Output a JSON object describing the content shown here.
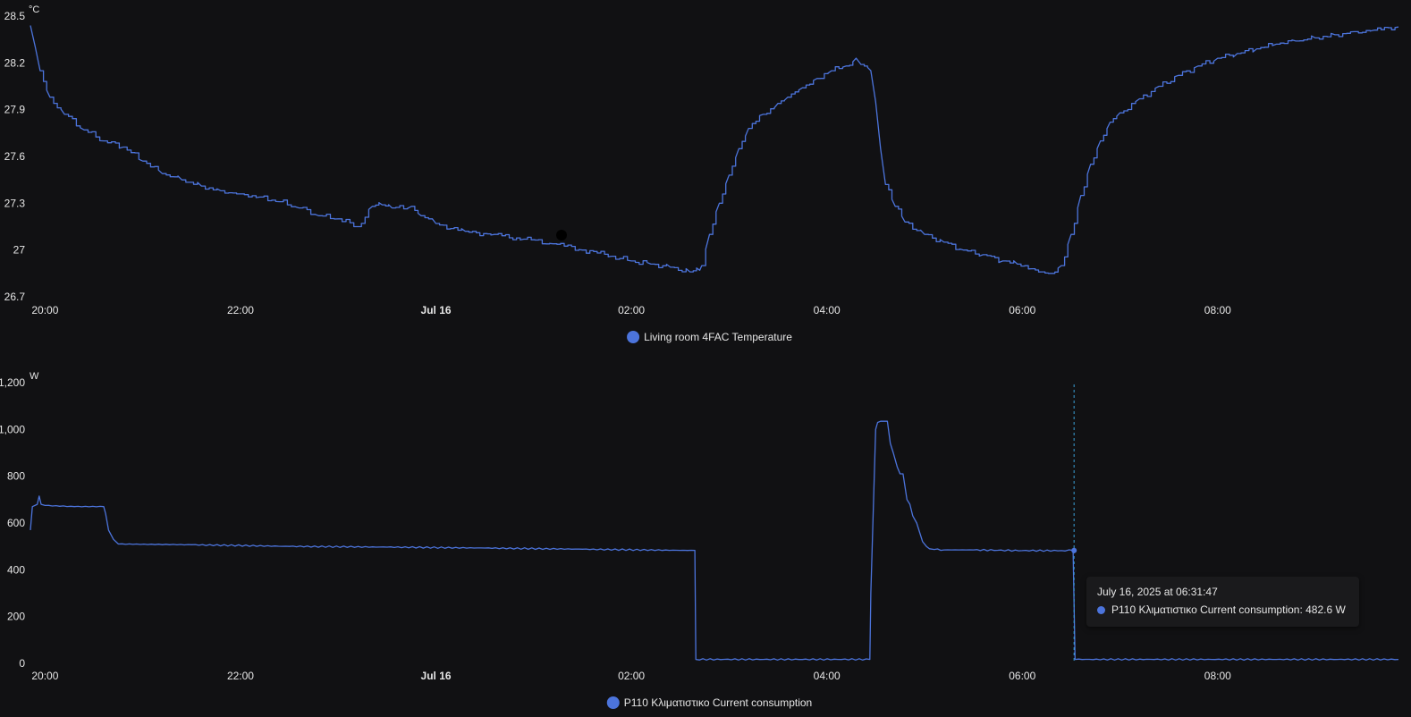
{
  "colors": {
    "background": "#111113",
    "series": "#4c74dc",
    "text": "#e6e6e6",
    "crosshair": "#3aa0d6"
  },
  "chart_data": [
    {
      "type": "line",
      "unit": "°C",
      "ylim": [
        26.7,
        28.5
      ],
      "y_ticks": [
        "28.5",
        "28.2",
        "27.9",
        "27.6",
        "27.3",
        "27",
        "26.7"
      ],
      "x_range_hours": [
        19.85,
        33.85
      ],
      "x_ticks": [
        {
          "label": "20:00",
          "hour": 20,
          "bold": false
        },
        {
          "label": "22:00",
          "hour": 22,
          "bold": false
        },
        {
          "label": "Jul 16",
          "hour": 24,
          "bold": true
        },
        {
          "label": "02:00",
          "hour": 26,
          "bold": false
        },
        {
          "label": "04:00",
          "hour": 28,
          "bold": false
        },
        {
          "label": "06:00",
          "hour": 30,
          "bold": false
        },
        {
          "label": "08:00",
          "hour": 32,
          "bold": false
        }
      ],
      "grid": false,
      "legend_position": "bottom-center",
      "series": [
        {
          "name": "Living room 4FAC Temperature",
          "x": [
            19.85,
            19.9,
            19.95,
            20.05,
            20.2,
            20.4,
            20.6,
            20.8,
            21.0,
            21.2,
            21.4,
            21.6,
            21.8,
            22.0,
            22.2,
            22.4,
            22.6,
            22.8,
            23.0,
            23.2,
            23.35,
            23.45,
            23.55,
            23.75,
            23.85,
            24.0,
            24.3,
            24.6,
            24.9,
            25.2,
            25.5,
            25.8,
            26.0,
            26.2,
            26.4,
            26.6,
            26.7,
            26.72,
            26.8,
            26.9,
            27.0,
            27.1,
            27.2,
            27.35,
            27.5,
            27.6,
            27.75,
            27.9,
            28.05,
            28.2,
            28.3,
            28.35,
            28.45,
            28.5,
            28.55,
            28.6,
            28.7,
            28.8,
            29.0,
            29.2,
            29.4,
            29.6,
            29.8,
            29.95,
            30.1,
            30.2,
            30.3,
            30.4,
            30.5,
            30.6,
            30.7,
            30.8,
            30.9,
            31.0,
            31.2,
            31.4,
            31.6,
            31.8,
            32.0,
            32.2,
            32.4,
            32.6,
            32.8,
            33.0,
            33.2,
            33.4,
            33.6,
            33.85
          ],
          "values": [
            28.44,
            28.3,
            28.15,
            27.98,
            27.87,
            27.77,
            27.7,
            27.66,
            27.57,
            27.49,
            27.45,
            27.41,
            27.38,
            27.36,
            27.34,
            27.31,
            27.27,
            27.22,
            27.2,
            27.15,
            27.28,
            27.29,
            27.27,
            27.28,
            27.22,
            27.17,
            27.12,
            27.1,
            27.07,
            27.04,
            27.0,
            26.96,
            26.93,
            26.91,
            26.89,
            26.86,
            26.87,
            26.9,
            27.1,
            27.3,
            27.48,
            27.65,
            27.78,
            27.87,
            27.94,
            27.98,
            28.04,
            28.1,
            28.15,
            28.18,
            28.23,
            28.19,
            28.15,
            27.95,
            27.65,
            27.42,
            27.28,
            27.18,
            27.1,
            27.05,
            27.0,
            26.97,
            26.93,
            26.91,
            26.88,
            26.86,
            26.85,
            26.9,
            27.1,
            27.35,
            27.55,
            27.7,
            27.82,
            27.88,
            27.97,
            28.05,
            28.12,
            28.18,
            28.23,
            28.26,
            28.29,
            28.32,
            28.34,
            28.36,
            28.38,
            28.4,
            28.41,
            28.43
          ]
        }
      ]
    },
    {
      "type": "line",
      "unit": "W",
      "ylim": [
        0,
        1200
      ],
      "y_ticks": [
        "1,200",
        "1,000",
        "800",
        "600",
        "400",
        "200",
        "0"
      ],
      "x_range_hours": [
        19.85,
        33.85
      ],
      "x_ticks": [
        {
          "label": "20:00",
          "hour": 20,
          "bold": false
        },
        {
          "label": "22:00",
          "hour": 22,
          "bold": false
        },
        {
          "label": "Jul 16",
          "hour": 24,
          "bold": true
        },
        {
          "label": "02:00",
          "hour": 26,
          "bold": false
        },
        {
          "label": "04:00",
          "hour": 28,
          "bold": false
        },
        {
          "label": "06:00",
          "hour": 30,
          "bold": false
        },
        {
          "label": "08:00",
          "hour": 32,
          "bold": false
        }
      ],
      "grid": false,
      "legend_position": "bottom-center",
      "series": [
        {
          "name": "P110 Κλιματιστικο Current consumption",
          "x": [
            19.85,
            19.87,
            19.92,
            19.94,
            19.96,
            20.0,
            20.3,
            20.6,
            20.62,
            20.65,
            20.7,
            20.75,
            21.5,
            22.5,
            23.5,
            24.5,
            25.5,
            26.5,
            26.65,
            26.66,
            28.44,
            28.45,
            28.5,
            28.52,
            28.55,
            28.58,
            28.62,
            28.65,
            28.68,
            28.72,
            28.75,
            28.78,
            28.82,
            28.85,
            28.88,
            28.92,
            28.95,
            28.98,
            29.02,
            29.05,
            29.1,
            29.2,
            29.5,
            30.0,
            30.4,
            30.52,
            30.54,
            33.85
          ],
          "values": [
            570,
            670,
            680,
            715,
            680,
            675,
            670,
            670,
            640,
            570,
            530,
            510,
            507,
            500,
            497,
            493,
            488,
            483,
            483,
            17,
            17,
            300,
            1000,
            1030,
            1035,
            1035,
            1035,
            940,
            900,
            840,
            810,
            810,
            700,
            680,
            630,
            600,
            560,
            520,
            500,
            490,
            487,
            485,
            485,
            482,
            482,
            482.6,
            17,
            17
          ]
        }
      ],
      "tooltip": {
        "title": "July 16, 2025 at 06:31:47",
        "line": "P110 Κλιματιστικο Current consumption: 482.6 W",
        "x_hour": 30.53,
        "value": 482.6
      }
    }
  ]
}
